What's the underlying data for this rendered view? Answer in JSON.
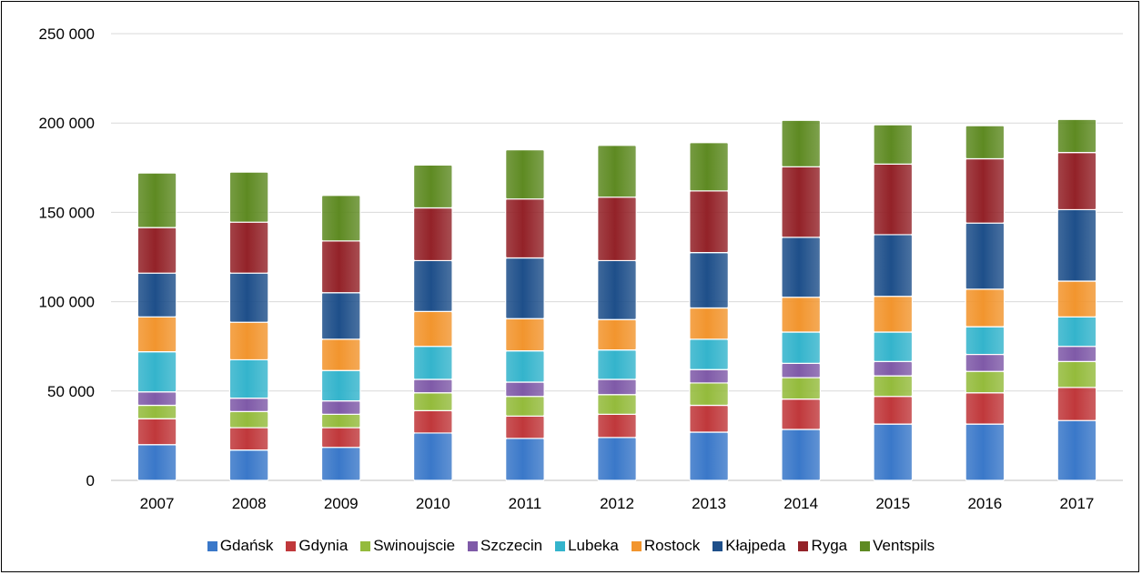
{
  "chart_data": {
    "type": "bar",
    "stacked": true,
    "categories": [
      "2007",
      "2008",
      "2009",
      "2010",
      "2011",
      "2012",
      "2013",
      "2014",
      "2015",
      "2016",
      "2017"
    ],
    "ylim": [
      0,
      250000
    ],
    "yticks": [
      0,
      50000,
      100000,
      150000,
      200000,
      250000
    ],
    "ytick_labels": [
      "0",
      "50 000",
      "100 000",
      "150 000",
      "200 000",
      "250 000"
    ],
    "grid": true,
    "legend_position": "bottom",
    "series": [
      {
        "name": "Gdańsk",
        "color": "#3a78c9",
        "values": [
          20000,
          17000,
          18500,
          26500,
          23500,
          24000,
          27000,
          28500,
          31500,
          31500,
          33500
        ]
      },
      {
        "name": "Gdynia",
        "color": "#c0383b",
        "values": [
          14500,
          12500,
          11000,
          12500,
          12500,
          13000,
          15000,
          17000,
          15500,
          17500,
          18500
        ]
      },
      {
        "name": "Swinoujscie",
        "color": "#94bb3c",
        "values": [
          7500,
          9000,
          7500,
          10000,
          11000,
          11000,
          12500,
          12000,
          11500,
          12000,
          14500
        ]
      },
      {
        "name": "Szczecin",
        "color": "#7f5aa8",
        "values": [
          7500,
          7500,
          7500,
          7500,
          8000,
          8500,
          7500,
          8000,
          8000,
          9500,
          8500
        ]
      },
      {
        "name": "Lubeka",
        "color": "#34b4cc",
        "values": [
          22500,
          21500,
          17000,
          18500,
          17500,
          16500,
          17000,
          17500,
          16500,
          15500,
          16500
        ]
      },
      {
        "name": "Rostock",
        "color": "#f2952e",
        "values": [
          19500,
          21000,
          17500,
          19500,
          18000,
          17000,
          17500,
          19500,
          20000,
          21000,
          20000
        ]
      },
      {
        "name": "Kłajpeda",
        "color": "#1e4f8a",
        "values": [
          24500,
          27500,
          26000,
          28500,
          34000,
          33000,
          31000,
          33500,
          34500,
          37000,
          40000
        ]
      },
      {
        "name": "Ryga",
        "color": "#932228",
        "values": [
          25500,
          28500,
          29000,
          29500,
          33000,
          35500,
          34500,
          39500,
          39500,
          36000,
          32000
        ]
      },
      {
        "name": "Ventspils",
        "color": "#5e8a22",
        "values": [
          30500,
          28000,
          25500,
          24000,
          27500,
          29000,
          27000,
          26000,
          22000,
          18500,
          18500
        ]
      }
    ]
  }
}
